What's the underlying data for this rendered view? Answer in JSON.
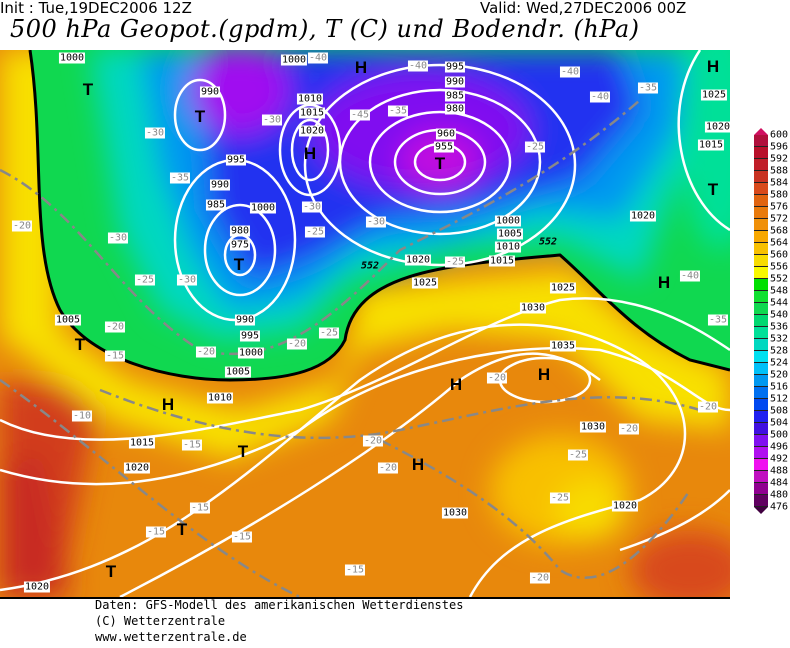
{
  "header": {
    "init": "Init : Tue,19DEC2006 12Z",
    "valid": "Valid: Wed,27DEC2006 00Z",
    "title": "500 hPa Geopot.(gpdm), T (C) und Bodendr. (hPa)"
  },
  "map": {
    "isobar_labels": [
      "1000",
      "990",
      "1010",
      "1015",
      "1020",
      "995",
      "990",
      "985",
      "1000",
      "980",
      "975",
      "1005",
      "990",
      "995",
      "1000",
      "1005",
      "1010",
      "1015",
      "1020",
      "1020",
      "1000",
      "995",
      "990",
      "985",
      "980",
      "960",
      "955",
      "1000",
      "1005",
      "1010",
      "1015",
      "1020",
      "1025",
      "1025",
      "1030",
      "1020",
      "1015",
      "1020",
      "1025",
      "1035",
      "1030",
      "1020",
      "1030",
      "552",
      "552"
    ],
    "temperature_labels": [
      "-40",
      "-40",
      "-40",
      "-40",
      "-35",
      "-45",
      "-30",
      "-30",
      "-35",
      "-30",
      "-25",
      "-30",
      "-25",
      "-30",
      "-20",
      "-20",
      "-15",
      "-20",
      "-20",
      "-25",
      "-25",
      "-35",
      "-30",
      "-25",
      "-40",
      "-35",
      "-10",
      "-15",
      "-15",
      "-15",
      "-15",
      "-15",
      "-20",
      "-20",
      "-20",
      "-20",
      "-25",
      "-25",
      "-20",
      "-20"
    ],
    "high_marker": "H",
    "low_marker": "T",
    "colors": {
      "warm": "#e8880c",
      "cold_core": "#b010f0",
      "isobar": "#ffffff",
      "isotherm": "#888888"
    }
  },
  "colorbar": {
    "labels": [
      "600",
      "596",
      "592",
      "588",
      "584",
      "580",
      "576",
      "572",
      "568",
      "564",
      "560",
      "556",
      "552",
      "548",
      "544",
      "540",
      "536",
      "532",
      "528",
      "524",
      "520",
      "516",
      "512",
      "508",
      "504",
      "500",
      "496",
      "492",
      "488",
      "484",
      "480",
      "476"
    ],
    "colors": [
      "#b0103c",
      "#b8102a",
      "#c01e28",
      "#c83222",
      "#d84a1c",
      "#e06410",
      "#e87a0c",
      "#f09008",
      "#f8a800",
      "#f8c000",
      "#f8dc00",
      "#f8f800",
      "#00e000",
      "#10e030",
      "#10d850",
      "#00d870",
      "#00e098",
      "#00d8c0",
      "#00e0f0",
      "#00c0f8",
      "#0098f0",
      "#0070f0",
      "#0048f0",
      "#2020f0",
      "#4010e0",
      "#8010f0",
      "#b010f0",
      "#f010f0",
      "#c010c0",
      "#900090",
      "#600060"
    ],
    "top_color": "#d01060",
    "bottom_color": "#400040"
  },
  "footer": {
    "line1": "Daten: GFS-Modell des amerikanischen Wetterdienstes",
    "line2": "(C) Wetterzentrale",
    "line3": "www.wetterzentrale.de"
  }
}
